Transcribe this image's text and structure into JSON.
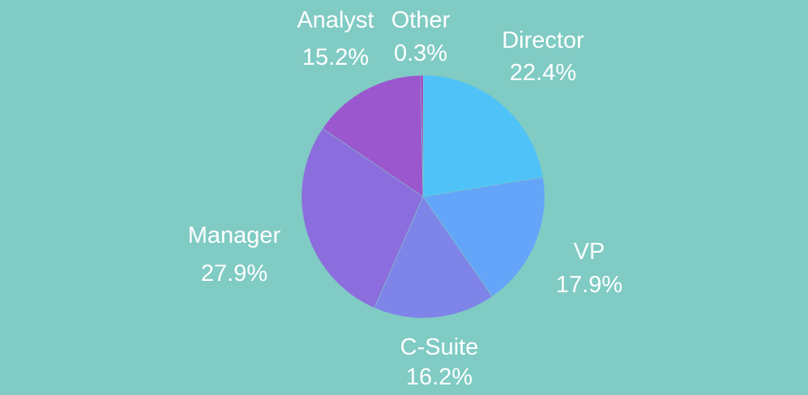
{
  "chart_data": {
    "type": "pie",
    "title": "",
    "categories": [
      "Director",
      "VP",
      "C-Suite",
      "Manager",
      "Analyst",
      "Other"
    ],
    "values": [
      22.4,
      17.9,
      16.2,
      27.9,
      15.2,
      0.3
    ],
    "value_labels": [
      "22.4%",
      "17.9%",
      "16.2%",
      "27.9%",
      "15.2%",
      "0.3%"
    ],
    "colors": [
      "#4fc3f7",
      "#64a5f9",
      "#7e84e8",
      "#8c6ddd",
      "#9b57ce",
      "#b02ec0"
    ],
    "start": "12 o'clock",
    "direction": "clockwise",
    "legend": "none"
  },
  "colors": {
    "background": "#80cbc4",
    "label": "#ffffff",
    "slice_border": "#80cbc4"
  }
}
